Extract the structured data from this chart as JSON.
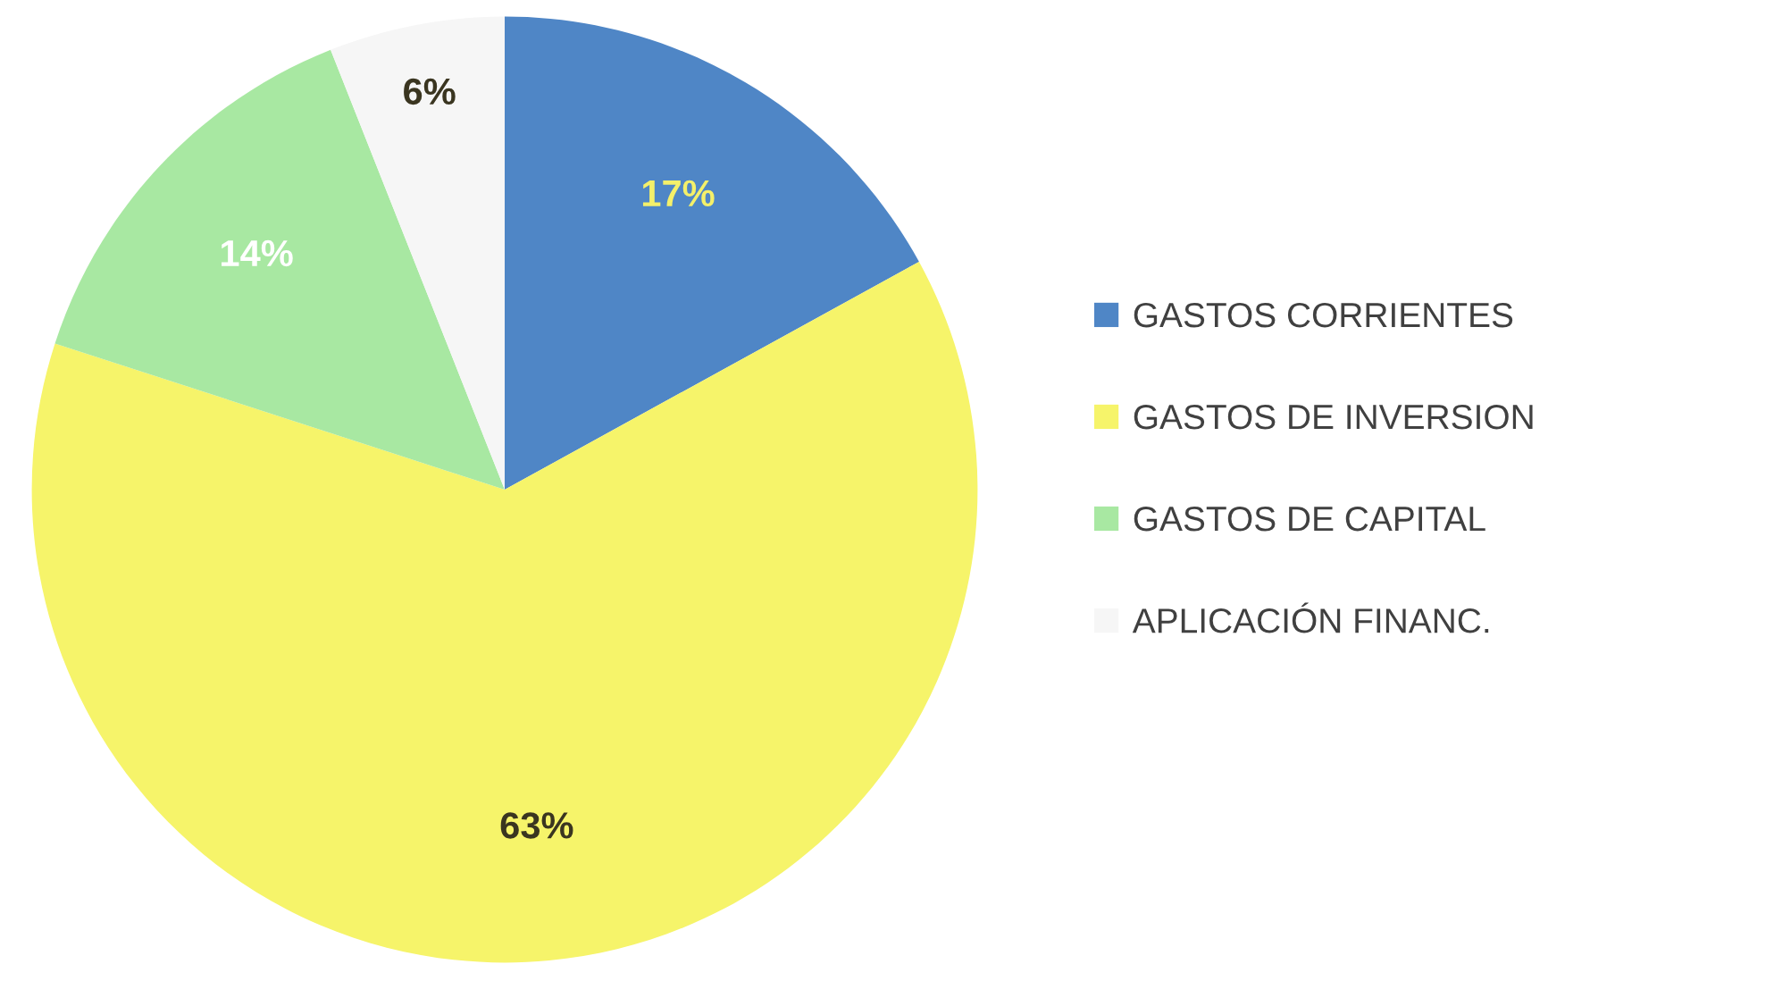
{
  "chart_data": {
    "type": "pie",
    "categories": [
      "GASTOS CORRIENTES",
      "GASTOS DE INVERSION",
      "GASTOS DE CAPITAL",
      "APLICACIÓN FINANC."
    ],
    "values": [
      17,
      63,
      14,
      6
    ],
    "colors": [
      "#4f86c6",
      "#f6f46a",
      "#a8e8a2",
      "#f6f6f6"
    ],
    "value_labels": [
      "17%",
      "63%",
      "14%",
      "6%"
    ],
    "legend": "right"
  }
}
